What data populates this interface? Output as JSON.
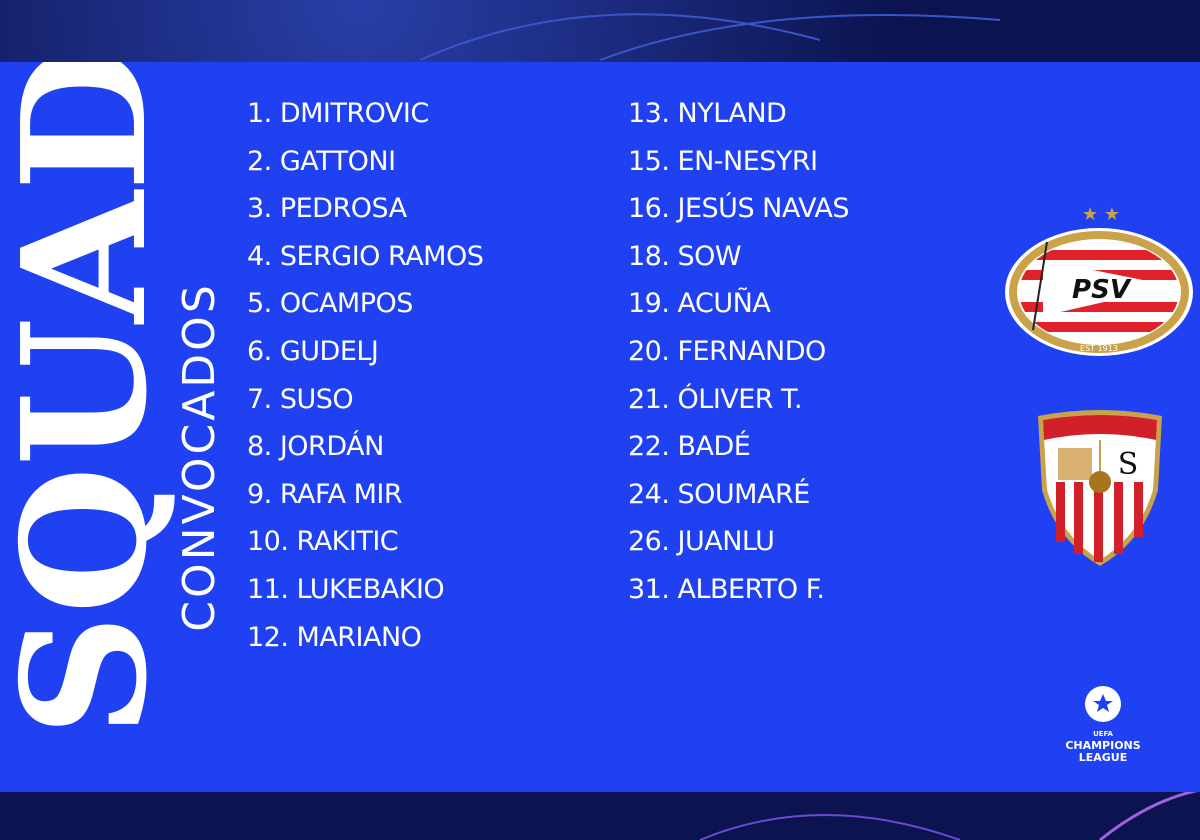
{
  "title": "SQUAD",
  "subtitle": "CONVOCADOS",
  "colors": {
    "panel": "#1f41f2",
    "background": "#0b1450",
    "text": "#ffffff"
  },
  "players_left": [
    "1. DMITROVIC",
    "2. GATTONI",
    "3. PEDROSA",
    "4. SERGIO RAMOS",
    "5. OCAMPOS",
    "6. GUDELJ",
    "7. SUSO",
    "8. JORDÁN",
    "9. RAFA MIR",
    "10. RAKITIC",
    "11. LUKEBAKIO",
    "12. MARIANO"
  ],
  "players_right": [
    "13. NYLAND",
    "15. EN-NESYRI",
    "16. JESÚS NAVAS",
    "18. SOW",
    "19. ACUÑA",
    "20. FERNANDO",
    "21. ÓLIVER T.",
    "22. BADÉ",
    "24. SOUMARÉ",
    "26. JUANLU",
    "31. ALBERTO F."
  ],
  "logos": {
    "psv": {
      "text": "PSV",
      "est": "EST 1913"
    },
    "sevilla": {
      "text": "SFC"
    },
    "competition": {
      "line1": "UEFA",
      "line2": "CHAMPIONS",
      "line3": "LEAGUE"
    }
  }
}
